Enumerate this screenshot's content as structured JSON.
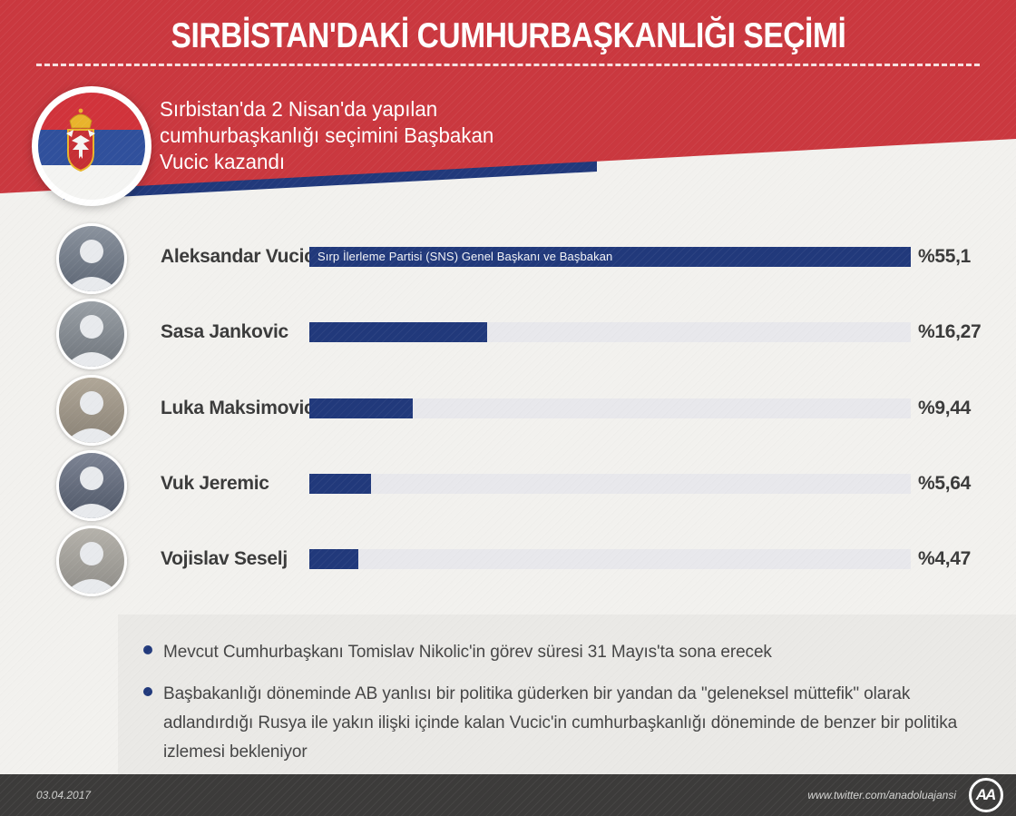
{
  "header": {
    "title": "SIRBİSTAN'DAKİ CUMHURBAŞKANLIĞI SEÇİMİ",
    "subtitle_lines": [
      "Sırbistan'da 2 Nisan'da yapılan",
      "cumhurbaşkanlığı seçimini Başbakan",
      "Vucic kazandı"
    ]
  },
  "icons": {
    "flag": "serbia-flag-icon",
    "bullet": "bullet-dot-icon",
    "logo": "anadolu-agency-logo"
  },
  "chart_data": {
    "type": "bar",
    "orientation": "horizontal",
    "unit": "%",
    "categories": [
      "Aleksandar Vucic",
      "Sasa Jankovic",
      "Luka Maksimovic",
      "Vuk Jeremic",
      "Vojislav Seselj"
    ],
    "values": [
      55.1,
      16.27,
      9.44,
      5.64,
      4.47
    ],
    "value_labels": [
      "%55,1",
      "%16,27",
      "%9,44",
      "%5,64",
      "%4,47"
    ],
    "bar_annotations": [
      "Sırp İlerleme Partisi (SNS) Genel Başkanı ve Başbakan",
      "",
      "",
      "",
      ""
    ],
    "x_max_scale": 55.1,
    "grid": false,
    "legend": false,
    "bar_color": "#21397b",
    "track_color": "#e8e8ec"
  },
  "notes": [
    "Mevcut Cumhurbaşkanı Tomislav Nikolic'in görev süresi 31 Mayıs'ta sona erecek",
    "Başbakanlığı döneminde AB yanlısı bir politika güderken bir yandan da \"geleneksel müttefik\" olarak adlandırdığı Rusya ile yakın ilişki içinde kalan Vucic'in cumhurbaşkanlığı döneminde de benzer bir politika izlemesi bekleniyor"
  ],
  "footer": {
    "date": "03.04.2017",
    "source_url": "www.twitter.com/anadoluajansi",
    "logo_text": "AA"
  },
  "colors": {
    "accent_red": "#ca383f",
    "navy": "#21397b",
    "background": "#f2f1ee",
    "notes_background": "#eae9e6",
    "footer_background": "#3c3b3a",
    "text_dark": "#3a3a3a"
  }
}
